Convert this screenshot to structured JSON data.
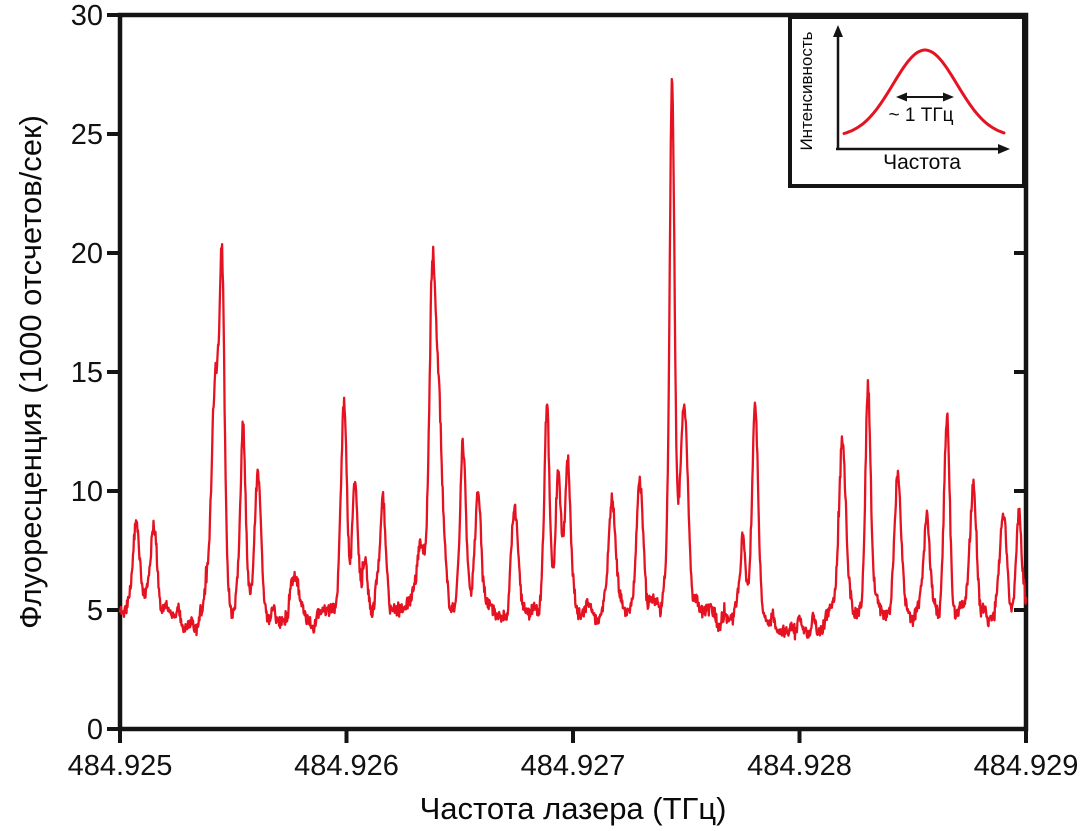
{
  "page": {
    "background": "#ffffff"
  },
  "chart_data": {
    "type": "line",
    "title": "",
    "xlabel": "Частота лазера (ТГц)",
    "ylabel": "Флуоресценция (1000 отсчетов/сек)",
    "xlim": [
      484.925,
      484.929
    ],
    "ylim": [
      0,
      30
    ],
    "x_ticks": [
      484.925,
      484.926,
      484.927,
      484.928,
      484.929
    ],
    "x_tick_labels": [
      "484.925",
      "484.926",
      "484.927",
      "484.928",
      "484.929"
    ],
    "y_ticks": [
      0,
      5,
      10,
      15,
      20,
      25,
      30
    ],
    "y_tick_labels": [
      "0",
      "5",
      "10",
      "15",
      "20",
      "25",
      "30"
    ],
    "grid": false,
    "legend": null,
    "line_color": "#e51322",
    "axis_color": "#141414",
    "baseline_level": 4.6,
    "noise_peak_to_peak": 1.0,
    "peaks_format": [
      "frequency_THz",
      "height_above_baseline_kcounts",
      "hwhm_THz"
    ],
    "peaks": [
      [
        484.925071,
        3.5,
        1.8e-05
      ],
      [
        484.92515,
        3.8,
        1.8e-05
      ],
      [
        484.925419,
        9.0,
        2.2e-05
      ],
      [
        484.92545,
        13.4,
        1.45e-05
      ],
      [
        484.925543,
        8.3,
        1.45e-05
      ],
      [
        484.925609,
        6.4,
        1.8e-05
      ],
      [
        484.925773,
        1.6,
        2.6e-05
      ],
      [
        484.925989,
        8.4,
        1.6e-05
      ],
      [
        484.926037,
        5.2,
        1.45e-05
      ],
      [
        484.926082,
        2.4,
        1.4e-05
      ],
      [
        484.926161,
        5.1,
        1.6e-05
      ],
      [
        484.926324,
        2.8,
        2.2e-05
      ],
      [
        484.926377,
        9.2,
        1.45e-05
      ],
      [
        484.9264,
        10.0,
        2.8e-05
      ],
      [
        484.926514,
        7.1,
        1.6e-05
      ],
      [
        484.92658,
        5.2,
        1.6e-05
      ],
      [
        484.926744,
        4.8,
        2e-05
      ],
      [
        484.926885,
        8.6,
        1.45e-05
      ],
      [
        484.926934,
        5.8,
        1.45e-05
      ],
      [
        484.926978,
        6.7,
        1.6e-05
      ],
      [
        484.927172,
        4.3,
        1.8e-05
      ],
      [
        484.927296,
        5.8,
        1.8e-05
      ],
      [
        484.927437,
        22.5,
        1.35e-05
      ],
      [
        484.92749,
        8.8,
        2.2e-05
      ],
      [
        484.927751,
        3.6,
        1.45e-05
      ],
      [
        484.927804,
        9.5,
        1.5e-05
      ],
      [
        484.928188,
        7.7,
        1.8e-05
      ],
      [
        484.928303,
        9.2,
        1.5e-05
      ],
      [
        484.928435,
        6.1,
        1.8e-05
      ],
      [
        484.928563,
        4.0,
        1.8e-05
      ],
      [
        484.928651,
        8.2,
        1.5e-05
      ],
      [
        484.928766,
        5.6,
        1.8e-05
      ],
      [
        484.928899,
        4.9,
        1.6e-05
      ],
      [
        484.928969,
        5.1,
        1.6e-05
      ]
    ]
  },
  "inset": {
    "ylabel": "Интенсивность",
    "xlabel": "Частота",
    "annotation": "~ 1 ТГц",
    "curve_shape": "gaussian",
    "curve_color": "#e51322",
    "axis_color": "#141414"
  }
}
